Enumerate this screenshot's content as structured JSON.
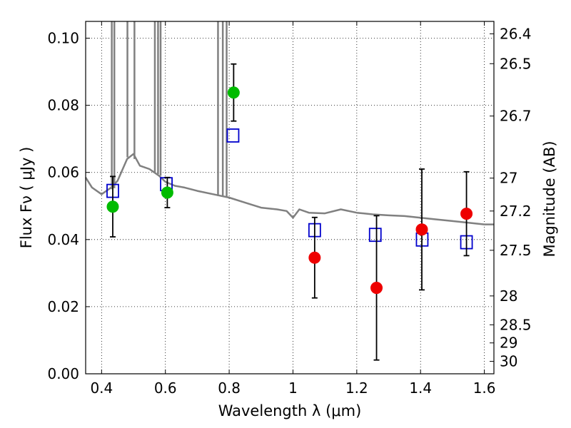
{
  "chart_data": {
    "type": "scatter",
    "title": "",
    "xlabel": "Wavelength  λ (μm)",
    "ylabel": "Flux  Fν  ( μJy )",
    "y2label": "Magnitude (AB)",
    "xlim": [
      0.35,
      1.63
    ],
    "ylim": [
      0.0,
      0.105
    ],
    "grid": true,
    "x_ticks": [
      0.4,
      0.6,
      0.8,
      1.0,
      1.2,
      1.4,
      1.6
    ],
    "x_tick_labels": [
      "0.4",
      "0.6",
      "0.8",
      "1",
      "1.2",
      "1.4",
      "1.6"
    ],
    "y_ticks": [
      0.0,
      0.02,
      0.04,
      0.06,
      0.08,
      0.1
    ],
    "y_tick_labels": [
      "0.00",
      "0.02",
      "0.04",
      "0.06",
      "0.08",
      "0.10"
    ],
    "y2_ticks": [
      {
        "label": "26.4",
        "flux": 0.1013
      },
      {
        "label": "26.5",
        "flux": 0.0924
      },
      {
        "label": "26.7",
        "flux": 0.0768
      },
      {
        "label": "27",
        "flux": 0.0583
      },
      {
        "label": "27.2",
        "flux": 0.0485
      },
      {
        "label": "27.5",
        "flux": 0.0368
      },
      {
        "label": "28",
        "flux": 0.0232
      },
      {
        "label": "28.5",
        "flux": 0.0146
      },
      {
        "label": "29",
        "flux": 0.0092
      },
      {
        "label": "30",
        "flux": 0.0037
      }
    ],
    "series": [
      {
        "marker": "square-open",
        "color": "#0000cc",
        "points": [
          {
            "x": 0.435,
            "y": 0.0545
          },
          {
            "x": 0.603,
            "y": 0.0565
          },
          {
            "x": 0.812,
            "y": 0.071
          },
          {
            "x": 1.068,
            "y": 0.0428
          },
          {
            "x": 1.258,
            "y": 0.0414
          },
          {
            "x": 1.405,
            "y": 0.04
          },
          {
            "x": 1.544,
            "y": 0.0392
          }
        ]
      },
      {
        "marker": "circle-filled",
        "color": "#00bb00",
        "points": [
          {
            "x": 0.435,
            "y": 0.0498,
            "yerr_low": 0.009,
            "yerr_high": 0.009
          },
          {
            "x": 0.606,
            "y": 0.054,
            "yerr_low": 0.0045,
            "yerr_high": 0.0045
          },
          {
            "x": 0.814,
            "y": 0.0838,
            "yerr_low": 0.0085,
            "yerr_high": 0.0085
          }
        ]
      },
      {
        "marker": "circle-filled",
        "color": "#ee0000",
        "points": [
          {
            "x": 1.068,
            "y": 0.0346,
            "yerr_low": 0.012,
            "yerr_high": 0.012
          },
          {
            "x": 1.262,
            "y": 0.0256,
            "yerr_low": 0.0215,
            "yerr_high": 0.0215
          },
          {
            "x": 1.404,
            "y": 0.043,
            "yerr_low": 0.018,
            "yerr_high": 0.018
          },
          {
            "x": 1.544,
            "y": 0.0477,
            "yerr_low": 0.0125,
            "yerr_high": 0.0125
          }
        ]
      }
    ],
    "model_spectrum": {
      "color": "#808080",
      "continuum": [
        [
          0.35,
          0.0585
        ],
        [
          0.37,
          0.0555
        ],
        [
          0.4,
          0.0535
        ],
        [
          0.43,
          0.0555
        ],
        [
          0.45,
          0.0575
        ],
        [
          0.48,
          0.064
        ],
        [
          0.5,
          0.0655
        ],
        [
          0.52,
          0.062
        ],
        [
          0.55,
          0.061
        ],
        [
          0.58,
          0.059
        ],
        [
          0.6,
          0.0572
        ],
        [
          0.63,
          0.056
        ],
        [
          0.66,
          0.0555
        ],
        [
          0.7,
          0.0545
        ],
        [
          0.75,
          0.0535
        ],
        [
          0.8,
          0.0525
        ],
        [
          0.85,
          0.051
        ],
        [
          0.9,
          0.0495
        ],
        [
          0.95,
          0.049
        ],
        [
          0.98,
          0.0485
        ],
        [
          1.0,
          0.0465
        ],
        [
          1.02,
          0.049
        ],
        [
          1.05,
          0.048
        ],
        [
          1.1,
          0.0478
        ],
        [
          1.15,
          0.049
        ],
        [
          1.2,
          0.048
        ],
        [
          1.25,
          0.0475
        ],
        [
          1.3,
          0.0472
        ],
        [
          1.35,
          0.047
        ],
        [
          1.4,
          0.0465
        ],
        [
          1.45,
          0.046
        ],
        [
          1.5,
          0.0455
        ],
        [
          1.55,
          0.045
        ],
        [
          1.6,
          0.0445
        ],
        [
          1.63,
          0.0445
        ]
      ],
      "emission_lines": [
        {
          "x": 0.432,
          "base": 0.055,
          "peak": 0.105
        },
        {
          "x": 0.44,
          "base": 0.0553,
          "peak": 0.105
        },
        {
          "x": 0.481,
          "base": 0.0645,
          "peak": 0.105
        },
        {
          "x": 0.503,
          "base": 0.064,
          "peak": 0.105
        },
        {
          "x": 0.567,
          "base": 0.06,
          "peak": 0.105
        },
        {
          "x": 0.577,
          "base": 0.0595,
          "peak": 0.105
        },
        {
          "x": 0.585,
          "base": 0.059,
          "peak": 0.105
        },
        {
          "x": 0.765,
          "base": 0.053,
          "peak": 0.105
        },
        {
          "x": 0.78,
          "base": 0.0528,
          "peak": 0.105
        },
        {
          "x": 0.792,
          "base": 0.0527,
          "peak": 0.105
        }
      ]
    }
  }
}
